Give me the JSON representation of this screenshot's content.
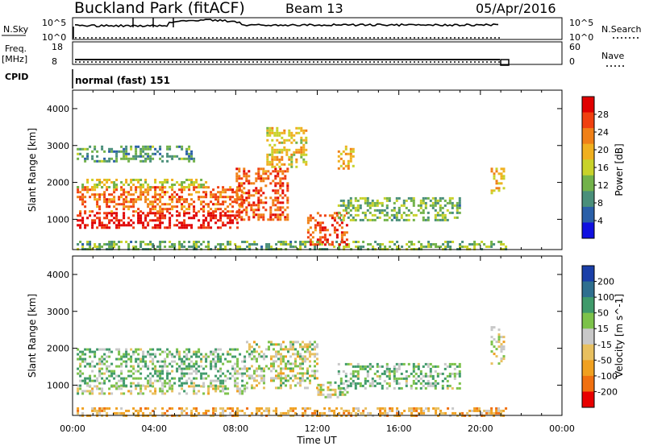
{
  "header": {
    "station": "Buckland Park (fitACF)",
    "beam": "Beam 13",
    "date": "05/Apr/2016"
  },
  "top_panels": {
    "nsky_label": "N.Sky",
    "nsky_ticks": [
      "10^5",
      "10^0"
    ],
    "nsearch_label": "N.Search",
    "nsearch_ticks": [
      "10^5",
      "10^0"
    ],
    "freq_label_1": "Freq.",
    "freq_label_2": "[MHz]",
    "freq_ticks": [
      "18",
      "8"
    ],
    "nave_label": "Nave",
    "nave_ticks": [
      "60",
      "0"
    ],
    "cpid_label": "CPID",
    "cpid_text": "normal (fast) 151"
  },
  "colors": {
    "power_scale": [
      "#1010e0",
      "#2a5fa8",
      "#4a8f7a",
      "#72b24a",
      "#c8d22a",
      "#f0b020",
      "#f08018",
      "#f04010",
      "#e00000"
    ],
    "velocity_scale": [
      "#1a3fa8",
      "#2f6f8f",
      "#3f9a6a",
      "#7cc24a",
      "#c8c8c8",
      "#e8c060",
      "#f0a020",
      "#f07010",
      "#e80000"
    ]
  },
  "chart_data": [
    {
      "type": "heatmap",
      "name": "power",
      "xlabel": "",
      "ylabel": "Slant Range [km]",
      "xlim": [
        "00:00",
        "24:00"
      ],
      "ylim": [
        180,
        4500
      ],
      "x_ticks": [
        "00:00",
        "04:00",
        "08:00",
        "12:00",
        "16:00",
        "20:00",
        "00:00"
      ],
      "y_ticks": [
        "1000",
        "2000",
        "3000",
        "4000"
      ],
      "colorbar": {
        "label": "Power [dB]",
        "ticks": [
          "4",
          "8",
          "12",
          "16",
          "20",
          "24",
          "28"
        ],
        "range": [
          0,
          32
        ]
      },
      "regions": [
        {
          "t0": 0.2,
          "t1": 8.1,
          "r0": 800,
          "r1": 1200,
          "value": 30
        },
        {
          "t0": 0.2,
          "t1": 8.3,
          "r0": 1200,
          "r1": 1900,
          "value": 24
        },
        {
          "t0": 0.2,
          "t1": 6.5,
          "r0": 1900,
          "r1": 2100,
          "value": 16
        },
        {
          "t0": 0.2,
          "t1": 6.0,
          "r0": 2600,
          "r1": 3000,
          "value": 10
        },
        {
          "t0": 0.2,
          "t1": 21.2,
          "r0": 200,
          "r1": 420,
          "value": 12
        },
        {
          "t0": 8.0,
          "t1": 10.5,
          "r0": 1000,
          "r1": 2400,
          "value": 26
        },
        {
          "t0": 9.5,
          "t1": 11.5,
          "r0": 2400,
          "r1": 3500,
          "value": 18
        },
        {
          "t0": 11.5,
          "t1": 13.5,
          "r0": 300,
          "r1": 1200,
          "value": 26
        },
        {
          "t0": 13.0,
          "t1": 19.0,
          "r0": 1000,
          "r1": 1600,
          "value": 12
        },
        {
          "t0": 13.0,
          "t1": 13.8,
          "r0": 2400,
          "r1": 3000,
          "value": 20
        },
        {
          "t0": 20.5,
          "t1": 21.2,
          "r0": 1700,
          "r1": 2400,
          "value": 20
        }
      ]
    },
    {
      "type": "heatmap",
      "name": "velocity",
      "xlabel": "Time UT",
      "ylabel": "Slant Range [km]",
      "xlim": [
        "00:00",
        "24:00"
      ],
      "ylim": [
        180,
        4500
      ],
      "x_ticks": [
        "00:00",
        "04:00",
        "08:00",
        "12:00",
        "16:00",
        "20:00",
        "00:00"
      ],
      "y_ticks": [
        "1000",
        "2000",
        "3000",
        "4000"
      ],
      "colorbar": {
        "label": "Velocity [m s^-1]",
        "ticks": [
          "200",
          "100",
          "50",
          "15",
          "-15",
          "-50",
          "-100",
          "-200"
        ]
      },
      "regions": [
        {
          "t0": 0.2,
          "t1": 8.5,
          "r0": 800,
          "r1": 1000,
          "value": 0
        },
        {
          "t0": 0.2,
          "t1": 8.5,
          "r0": 1000,
          "r1": 2000,
          "value": 40
        },
        {
          "t0": 0.2,
          "t1": 21.2,
          "r0": 200,
          "r1": 400,
          "value": -60
        },
        {
          "t0": 8.5,
          "t1": 12.0,
          "r0": 900,
          "r1": 2200,
          "value": 0
        },
        {
          "t0": 12.0,
          "t1": 13.5,
          "r0": 700,
          "r1": 1100,
          "value": 0
        },
        {
          "t0": 13.0,
          "t1": 19.0,
          "r0": 900,
          "r1": 1600,
          "value": 40
        },
        {
          "t0": 20.5,
          "t1": 21.2,
          "r0": 1600,
          "r1": 2600,
          "value": 0
        }
      ]
    }
  ]
}
